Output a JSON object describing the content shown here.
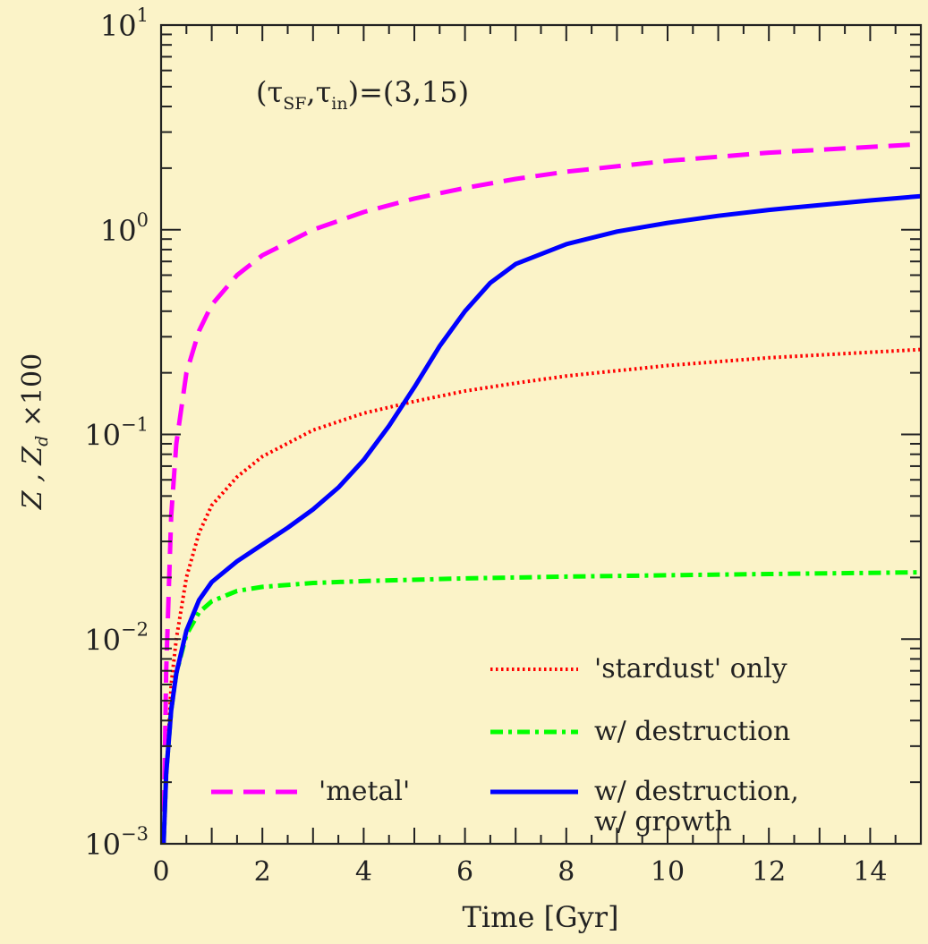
{
  "chart_data": {
    "type": "line",
    "xlabel": "Time [Gyr]",
    "ylabel_main": "Z , Z",
    "ylabel_sub": "d",
    "ylabel_tail": " ×100",
    "annotation_main": "(τ",
    "annotation_sub1": "SF",
    "annotation_mid": ",τ",
    "annotation_sub2": "in",
    "annotation_tail": ")=(3,15)",
    "xlim": [
      0,
      15
    ],
    "ylim": [
      0.001,
      10
    ],
    "yscale": "log",
    "x_ticks": [
      {
        "value": 0,
        "label": "0"
      },
      {
        "value": 2,
        "label": "2"
      },
      {
        "value": 4,
        "label": "4"
      },
      {
        "value": 6,
        "label": "6"
      },
      {
        "value": 8,
        "label": "8"
      },
      {
        "value": 10,
        "label": "10"
      },
      {
        "value": 12,
        "label": "12"
      },
      {
        "value": 14,
        "label": "14"
      }
    ],
    "y_ticks": [
      {
        "value": 0.001,
        "base": "10",
        "exp": "−3"
      },
      {
        "value": 0.01,
        "base": "10",
        "exp": "−2"
      },
      {
        "value": 0.1,
        "base": "10",
        "exp": "−1"
      },
      {
        "value": 1,
        "base": "10",
        "exp": "0"
      },
      {
        "value": 10,
        "base": "10",
        "exp": "1"
      }
    ],
    "grid": false,
    "series": [
      {
        "name": "'metal'",
        "color": "#ff00ff",
        "dash": "dashed",
        "x": [
          0.05,
          0.1,
          0.2,
          0.3,
          0.5,
          0.75,
          1,
          1.5,
          2,
          3,
          4,
          5,
          6,
          7,
          8,
          10,
          12,
          15
        ],
        "y": [
          0.001,
          0.007,
          0.04,
          0.09,
          0.2,
          0.32,
          0.43,
          0.6,
          0.75,
          1.0,
          1.22,
          1.42,
          1.6,
          1.77,
          1.92,
          2.17,
          2.38,
          2.62
        ]
      },
      {
        "name": "'stardust' only",
        "color": "#ff0000",
        "dash": "dotted",
        "x": [
          0.05,
          0.1,
          0.2,
          0.3,
          0.5,
          0.75,
          1,
          1.5,
          2,
          3,
          4,
          5,
          6,
          7,
          8,
          10,
          12,
          15
        ],
        "y": [
          0.001,
          0.002,
          0.006,
          0.01,
          0.02,
          0.033,
          0.045,
          0.062,
          0.078,
          0.105,
          0.127,
          0.145,
          0.163,
          0.178,
          0.193,
          0.217,
          0.237,
          0.26
        ]
      },
      {
        "name": "w/ destruction",
        "color": "#00ff00",
        "dash": "dashdot",
        "x": [
          0.05,
          0.1,
          0.2,
          0.3,
          0.5,
          0.75,
          1,
          1.5,
          2,
          3,
          4,
          6,
          8,
          10,
          12,
          15
        ],
        "y": [
          0.001,
          0.0022,
          0.0045,
          0.0068,
          0.0105,
          0.0135,
          0.0153,
          0.0172,
          0.018,
          0.0188,
          0.0192,
          0.0198,
          0.0202,
          0.0205,
          0.0208,
          0.0212
        ]
      },
      {
        "name": "w/ destruction,\nw/ growth",
        "label_line1": "w/ destruction,",
        "label_line2": "w/ growth",
        "color": "#0000ff",
        "dash": "solid",
        "x": [
          0.05,
          0.1,
          0.2,
          0.3,
          0.5,
          0.75,
          1,
          1.5,
          2,
          2.5,
          3,
          3.5,
          4,
          4.5,
          5,
          5.5,
          6,
          6.5,
          7,
          8,
          9,
          10,
          11,
          12,
          13,
          14,
          15
        ],
        "y": [
          0.001,
          0.0022,
          0.0045,
          0.0068,
          0.011,
          0.0155,
          0.019,
          0.024,
          0.029,
          0.035,
          0.043,
          0.055,
          0.075,
          0.11,
          0.17,
          0.27,
          0.4,
          0.55,
          0.68,
          0.85,
          0.98,
          1.08,
          1.17,
          1.25,
          1.32,
          1.39,
          1.46
        ]
      }
    ]
  }
}
